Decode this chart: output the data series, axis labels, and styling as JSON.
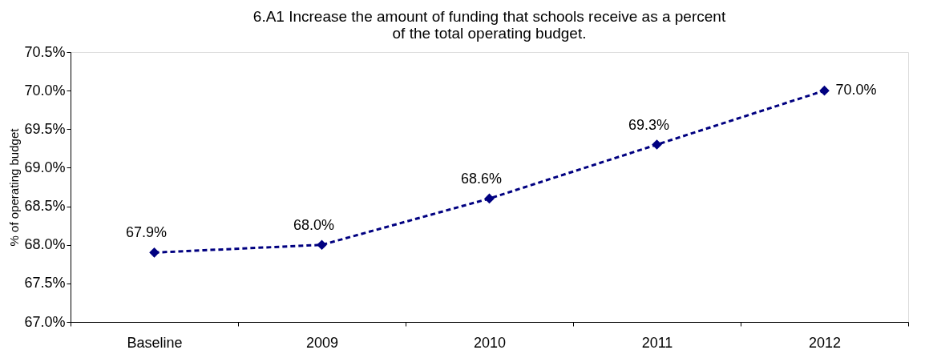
{
  "chart_data": {
    "type": "line",
    "title": "6.A1  Increase the amount of funding that schools receive as a percent of the total operating budget.",
    "ylabel": "% of operating budget",
    "categories": [
      "Baseline",
      "2009",
      "2010",
      "2011",
      "2012"
    ],
    "series": [
      {
        "color": "#000080",
        "values": [
          67.9,
          68.0,
          68.6,
          69.3,
          70.0
        ],
        "value_labels": [
          "67.9%",
          "68.0%",
          "68.6%",
          "69.3%",
          "70.0%"
        ]
      }
    ],
    "ylim": [
      67.0,
      70.5
    ],
    "yticks": [
      {
        "value": 67.0,
        "label": "67.0%"
      },
      {
        "value": 67.5,
        "label": "67.5%"
      },
      {
        "value": 68.0,
        "label": "68.0%"
      },
      {
        "value": 68.5,
        "label": "68.5%"
      },
      {
        "value": 69.0,
        "label": "69.0%"
      },
      {
        "value": 69.5,
        "label": "69.5%"
      },
      {
        "value": 70.0,
        "label": "70.0%"
      },
      {
        "value": 70.5,
        "label": "70.5%"
      }
    ],
    "marker": "diamond",
    "line_style": "dashed",
    "grid": false
  }
}
